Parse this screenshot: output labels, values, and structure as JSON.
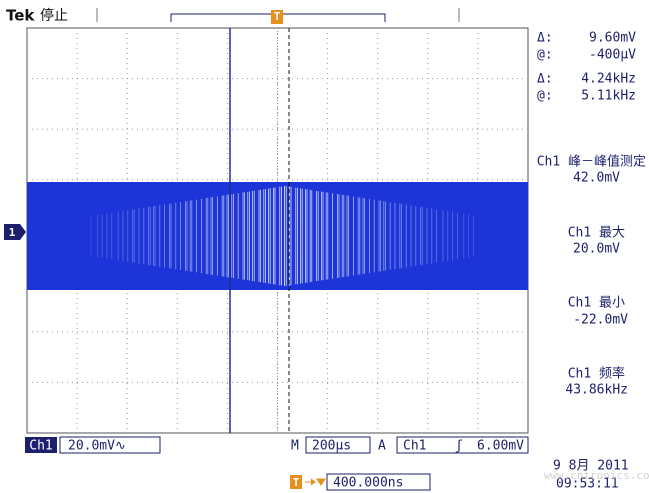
{
  "header": {
    "brand": "Tek",
    "status": "停止",
    "trigger_marker": "T",
    "channel_marker": "1"
  },
  "cursor_readout": {
    "voltage_delta_label": "Δ:",
    "voltage_delta": "9.60mV",
    "voltage_at_label": "@:",
    "voltage_at": "-400μV",
    "freq_delta_label": "Δ:",
    "freq_delta": "4.24kHz",
    "freq_at_label": "@:",
    "freq_at": "5.11kHz"
  },
  "measurements": [
    {
      "label": "Ch1 峰－峰值测定",
      "value": "42.0mV"
    },
    {
      "label": "Ch1 最大",
      "value": "20.0mV"
    },
    {
      "label": "Ch1 最小",
      "value": "-22.0mV"
    },
    {
      "label": "Ch1 频率",
      "value": "43.86kHz"
    }
  ],
  "footer": {
    "channel": "Ch1",
    "scale": "20.0mV∿",
    "timebase_label": "M",
    "timebase": "200μs",
    "trigger_label": "A",
    "trigger_channel": "Ch1",
    "trigger_slope": "ʃ",
    "trigger_level": "6.00mV",
    "position_marker": "T",
    "position": "400.000ns",
    "date": "9 8月  2011",
    "time": "09:53:11"
  },
  "watermark": "www.cntronics.com"
}
